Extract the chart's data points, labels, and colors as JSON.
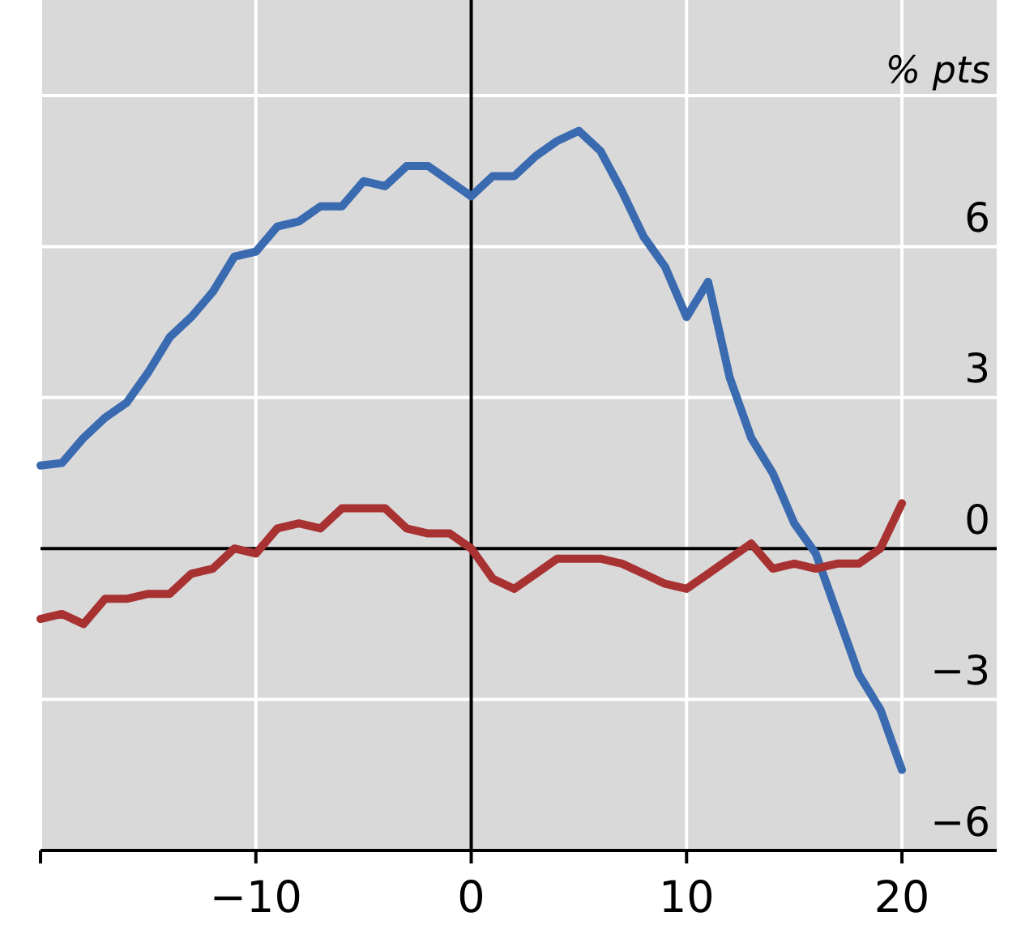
{
  "chart_data": {
    "type": "line",
    "ylabel": "% pts",
    "x": [
      -20,
      -19,
      -18,
      -17,
      -16,
      -15,
      -14,
      -13,
      -12,
      -11,
      -10,
      -9,
      -8,
      -7,
      -6,
      -5,
      -4,
      -3,
      -2,
      -1,
      0,
      1,
      2,
      3,
      4,
      5,
      6,
      7,
      8,
      9,
      10,
      11,
      12,
      13,
      14,
      15,
      16,
      17,
      18,
      19,
      20
    ],
    "series": [
      {
        "color": "#3a6ab0",
        "values": [
          1.65,
          1.7,
          2.2,
          2.6,
          2.9,
          3.5,
          4.2,
          4.6,
          5.1,
          5.8,
          5.9,
          6.4,
          6.5,
          6.8,
          6.8,
          7.3,
          7.2,
          7.6,
          7.6,
          7.3,
          7.0,
          7.4,
          7.4,
          7.8,
          8.1,
          8.3,
          7.9,
          7.1,
          6.2,
          5.6,
          4.6,
          5.3,
          3.4,
          2.2,
          1.5,
          0.5,
          -0.1,
          -1.3,
          -2.5,
          -3.2,
          -4.4
        ]
      },
      {
        "color": "#a83232",
        "values": [
          -1.4,
          -1.3,
          -1.5,
          -1.0,
          -1.0,
          -0.9,
          -0.9,
          -0.5,
          -0.4,
          0.0,
          -0.1,
          0.4,
          0.5,
          0.4,
          0.8,
          0.8,
          0.8,
          0.4,
          0.3,
          0.3,
          0.0,
          -0.6,
          -0.8,
          -0.5,
          -0.2,
          -0.2,
          -0.2,
          -0.3,
          -0.5,
          -0.7,
          -0.8,
          -0.5,
          -0.2,
          0.1,
          -0.4,
          -0.3,
          -0.4,
          -0.3,
          -0.3,
          0.0,
          0.9
        ]
      }
    ],
    "xlim": [
      -20,
      24.4
    ],
    "xticks": [
      {
        "value": -20,
        "label": null
      },
      {
        "value": -10,
        "label": "−10"
      },
      0,
      10,
      20
    ],
    "ylim": [
      -6,
      10.9
    ],
    "yticks": [
      {
        "value": -6,
        "label": "−6"
      },
      {
        "value": -3,
        "label": "−3"
      },
      0,
      3,
      6,
      {
        "value": 9,
        "label": null
      }
    ],
    "grid": true
  }
}
